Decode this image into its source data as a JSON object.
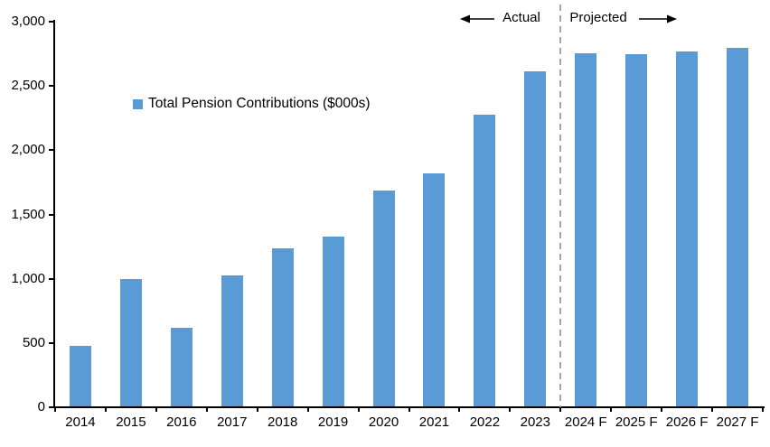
{
  "chart_data": {
    "type": "bar",
    "categories": [
      "2014",
      "2015",
      "2016",
      "2017",
      "2018",
      "2019",
      "2020",
      "2021",
      "2022",
      "2023",
      "2024 F",
      "2025 F",
      "2026 F",
      "2027 F"
    ],
    "values": [
      470,
      990,
      610,
      1020,
      1230,
      1320,
      1680,
      1810,
      2270,
      2610,
      2750,
      2740,
      2760,
      2790
    ],
    "legend": "Total Pension Contributions ($000s)",
    "xlabel": "",
    "ylabel": "",
    "ylim": [
      0,
      3000
    ],
    "ytick_step": 500,
    "ytick_labels": [
      "0",
      "500",
      "1,000",
      "1,500",
      "2,000",
      "2,500",
      "3,000"
    ],
    "grid": false,
    "legend_position": "upper-left-inside",
    "bar_color": "#5B9BD5",
    "axis_color": "#000000",
    "text_color": "#000000",
    "divider": {
      "after_category": "2023",
      "color": "#A6A6A6",
      "style": "dashed"
    },
    "annotations": {
      "left_of_divider": "Actual",
      "right_of_divider": "Projected"
    }
  }
}
